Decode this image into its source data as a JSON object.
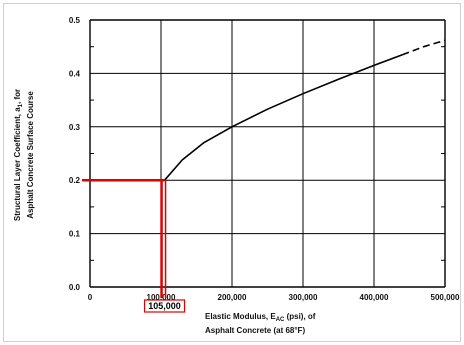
{
  "chart_data": {
    "type": "line",
    "ylabel_line1": "Structural Layer Coefficient, a",
    "ylabel_sub": "1",
    "ylabel_tail": ", for",
    "ylabel_line2": "Asphalt Concrete Surface Course",
    "xlabel_line1_pre": "Elastic Modulus, E",
    "xlabel_line1_sub": "AC",
    "xlabel_line1_post": " (psi), of",
    "xlabel_line2": "Asphalt Concrete (at 68°F)",
    "x_ticks": [
      "0",
      "100,000",
      "200,000",
      "300,000",
      "400,000",
      "500,000"
    ],
    "x_tick_values": [
      0,
      100000,
      200000,
      300000,
      400000,
      500000
    ],
    "y_ticks": [
      "0.0",
      "0.1",
      "0.2",
      "0.3",
      "0.4",
      "0.5"
    ],
    "y_tick_values": [
      0.0,
      0.1,
      0.2,
      0.3,
      0.4,
      0.5
    ],
    "xlim": [
      0,
      500000
    ],
    "ylim": [
      0,
      0.5
    ],
    "grid": true,
    "series": [
      {
        "style": "solid",
        "x": [
          105000,
          130000,
          160000,
          200000,
          250000,
          300000,
          350000,
          400000,
          440000
        ],
        "y": [
          0.2,
          0.238,
          0.27,
          0.3,
          0.333,
          0.362,
          0.389,
          0.415,
          0.435
        ]
      },
      {
        "style": "dashed",
        "x": [
          440000,
          470000,
          500000
        ],
        "y": [
          0.435,
          0.45,
          0.462
        ]
      }
    ],
    "annotation": {
      "label": "105,000",
      "x": 105000,
      "y": 0.2,
      "color": "#e00000"
    }
  }
}
